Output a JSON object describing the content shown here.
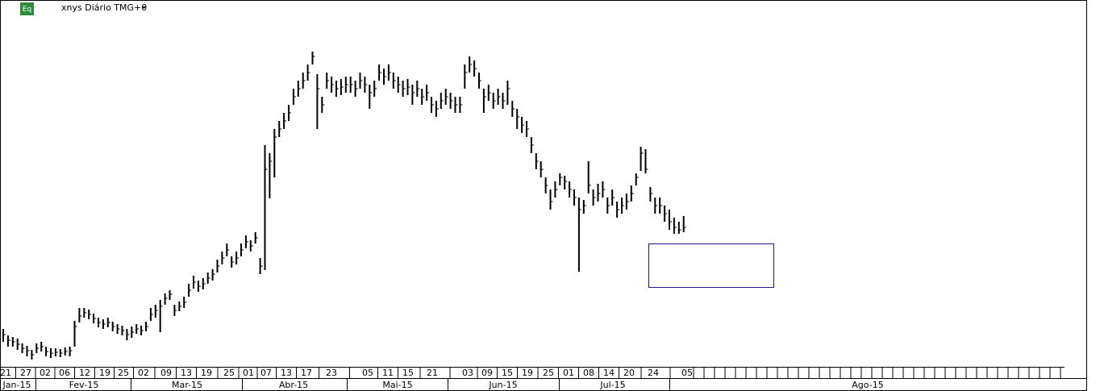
{
  "icon": "Eq",
  "title": "xnys Diário TMG+0",
  "chart_data": {
    "type": "bar-hlc",
    "color": "#000000",
    "bars": [
      [
        52,
        36,
        45
      ],
      [
        44,
        30,
        38
      ],
      [
        42,
        30,
        36
      ],
      [
        40,
        26,
        33
      ],
      [
        34,
        22,
        28
      ],
      [
        31,
        18,
        25
      ],
      [
        26,
        14,
        20
      ],
      [
        34,
        22,
        28
      ],
      [
        36,
        24,
        30
      ],
      [
        30,
        18,
        24
      ],
      [
        28,
        16,
        22
      ],
      [
        28,
        18,
        23
      ],
      [
        27,
        17,
        22
      ],
      [
        29,
        19,
        24
      ],
      [
        30,
        18,
        25
      ],
      [
        62,
        30,
        55
      ],
      [
        78,
        60,
        68
      ],
      [
        78,
        66,
        72
      ],
      [
        76,
        64,
        70
      ],
      [
        71,
        59,
        65
      ],
      [
        66,
        54,
        60
      ],
      [
        64,
        52,
        58
      ],
      [
        66,
        54,
        60
      ],
      [
        61,
        49,
        55
      ],
      [
        58,
        46,
        52
      ],
      [
        56,
        44,
        50
      ],
      [
        52,
        38,
        45
      ],
      [
        55,
        41,
        48
      ],
      [
        58,
        46,
        52
      ],
      [
        56,
        44,
        50
      ],
      [
        61,
        49,
        55
      ],
      [
        78,
        62,
        70
      ],
      [
        82,
        66,
        75
      ],
      [
        88,
        48,
        80
      ],
      [
        96,
        82,
        90
      ],
      [
        100,
        88,
        95
      ],
      [
        82,
        68,
        75
      ],
      [
        86,
        74,
        80
      ],
      [
        92,
        78,
        85
      ],
      [
        108,
        92,
        100
      ],
      [
        118,
        102,
        110
      ],
      [
        112,
        98,
        105
      ],
      [
        115,
        101,
        108
      ],
      [
        122,
        108,
        115
      ],
      [
        126,
        112,
        120
      ],
      [
        138,
        122,
        130
      ],
      [
        148,
        132,
        140
      ],
      [
        158,
        142,
        150
      ],
      [
        142,
        128,
        135
      ],
      [
        148,
        132,
        140
      ],
      [
        158,
        142,
        150
      ],
      [
        168,
        152,
        160
      ],
      [
        162,
        148,
        155
      ],
      [
        172,
        158,
        165
      ],
      [
        140,
        120,
        130
      ],
      [
        280,
        125,
        250
      ],
      [
        270,
        214,
        260
      ],
      [
        300,
        240,
        290
      ],
      [
        310,
        290,
        300
      ],
      [
        320,
        300,
        310
      ],
      [
        330,
        310,
        320
      ],
      [
        350,
        330,
        340
      ],
      [
        360,
        340,
        350
      ],
      [
        370,
        350,
        360
      ],
      [
        380,
        360,
        370
      ],
      [
        396,
        380,
        390
      ],
      [
        368,
        300,
        350
      ],
      [
        340,
        320,
        330
      ],
      [
        370,
        350,
        360
      ],
      [
        365,
        345,
        355
      ],
      [
        360,
        340,
        350
      ],
      [
        362,
        342,
        352
      ],
      [
        365,
        345,
        355
      ],
      [
        365,
        345,
        355
      ],
      [
        360,
        340,
        350
      ],
      [
        370,
        350,
        360
      ],
      [
        365,
        345,
        355
      ],
      [
        355,
        325,
        345
      ],
      [
        360,
        340,
        350
      ],
      [
        380,
        360,
        370
      ],
      [
        375,
        355,
        365
      ],
      [
        380,
        360,
        370
      ],
      [
        370,
        350,
        360
      ],
      [
        365,
        345,
        355
      ],
      [
        360,
        340,
        350
      ],
      [
        362,
        342,
        352
      ],
      [
        355,
        330,
        345
      ],
      [
        360,
        340,
        350
      ],
      [
        350,
        330,
        340
      ],
      [
        355,
        335,
        345
      ],
      [
        340,
        320,
        330
      ],
      [
        335,
        315,
        325
      ],
      [
        345,
        325,
        335
      ],
      [
        350,
        330,
        340
      ],
      [
        345,
        325,
        335
      ],
      [
        340,
        320,
        330
      ],
      [
        340,
        320,
        330
      ],
      [
        380,
        350,
        370
      ],
      [
        390,
        370,
        380
      ],
      [
        385,
        365,
        375
      ],
      [
        370,
        350,
        360
      ],
      [
        350,
        320,
        340
      ],
      [
        355,
        335,
        345
      ],
      [
        345,
        325,
        335
      ],
      [
        350,
        330,
        340
      ],
      [
        345,
        325,
        335
      ],
      [
        360,
        330,
        350
      ],
      [
        335,
        315,
        325
      ],
      [
        325,
        300,
        315
      ],
      [
        315,
        295,
        305
      ],
      [
        310,
        290,
        300
      ],
      [
        290,
        270,
        280
      ],
      [
        270,
        250,
        260
      ],
      [
        260,
        240,
        250
      ],
      [
        240,
        220,
        230
      ],
      [
        225,
        200,
        210
      ],
      [
        235,
        215,
        225
      ],
      [
        245,
        230,
        240
      ],
      [
        242,
        225,
        235
      ],
      [
        235,
        215,
        225
      ],
      [
        225,
        205,
        215
      ],
      [
        215,
        123,
        200
      ],
      [
        212,
        195,
        205
      ],
      [
        260,
        220,
        230
      ],
      [
        225,
        205,
        215
      ],
      [
        232,
        210,
        220
      ],
      [
        235,
        215,
        225
      ],
      [
        215,
        195,
        205
      ],
      [
        225,
        205,
        215
      ],
      [
        210,
        190,
        200
      ],
      [
        215,
        195,
        205
      ],
      [
        220,
        200,
        210
      ],
      [
        230,
        210,
        220
      ],
      [
        245,
        230,
        240
      ],
      [
        278,
        248,
        270
      ],
      [
        275,
        245,
        250
      ],
      [
        228,
        210,
        220
      ],
      [
        215,
        195,
        205
      ],
      [
        215,
        195,
        205
      ],
      [
        205,
        185,
        195
      ],
      [
        200,
        175,
        185
      ],
      [
        190,
        170,
        178
      ],
      [
        185,
        170,
        175
      ],
      [
        192,
        172,
        178
      ]
    ],
    "date_labels": [
      "21",
      "27",
      "02",
      "06",
      "12",
      "19",
      "25",
      "02",
      "09",
      "13",
      "19",
      "25",
      "01",
      "07",
      "13",
      "17",
      "23",
      "05",
      "11",
      "15",
      "21",
      "03",
      "09",
      "15",
      "19",
      "25",
      "01",
      "08",
      "14",
      "20",
      "24",
      "05"
    ],
    "month_labels": [
      "Jan-15",
      "Fev-15",
      "Mar-15",
      "Abr-15",
      "Mai-15",
      "Jun-15",
      "Jul-15",
      "Ago-15"
    ]
  }
}
